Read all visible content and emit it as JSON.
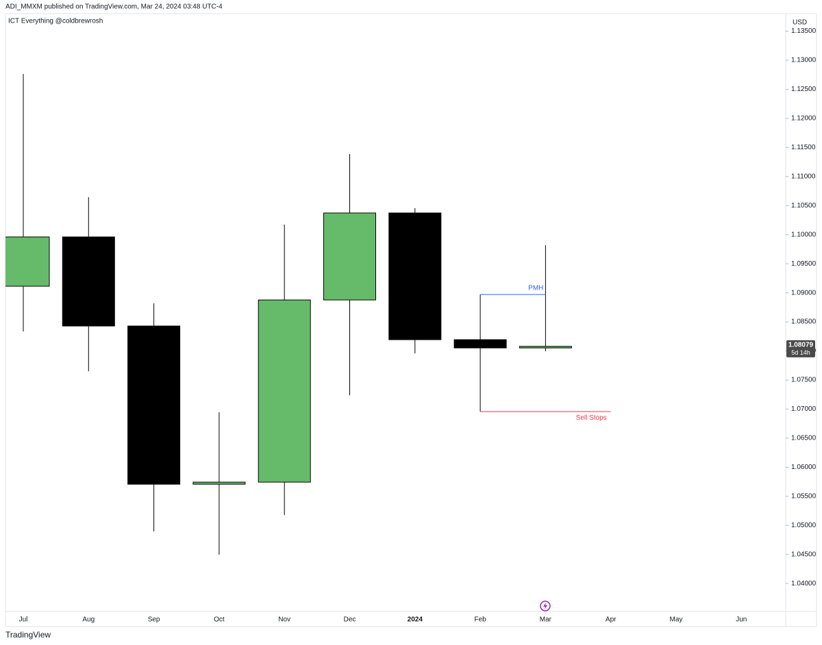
{
  "header": "ADI_MMXM published on TradingView.com, Mar 24, 2024 03:48 UTC-4",
  "footer": "TradingView",
  "chart_data": {
    "type": "candlestick",
    "title": "ICT Everything @coldbrewrosh",
    "currency": "USD",
    "categories": [
      "Jul",
      "Aug",
      "Sep",
      "Oct",
      "Nov",
      "Dec",
      "2024",
      "Feb",
      "Mar",
      "Apr",
      "May",
      "Jun"
    ],
    "open": [
      1.09113,
      1.09961,
      1.08429,
      1.05708,
      1.05744,
      1.08877,
      1.10373,
      1.08194,
      1.08052,
      null,
      null,
      null
    ],
    "high": [
      1.12764,
      1.10644,
      1.08818,
      1.06945,
      1.10173,
      1.11386,
      1.10456,
      1.08971,
      1.0982,
      null,
      null,
      null
    ],
    "low": [
      1.08335,
      1.07652,
      1.04896,
      1.04495,
      1.05178,
      1.0724,
      1.07958,
      1.06957,
      1.07993,
      null,
      null,
      null
    ],
    "close": [
      1.09961,
      1.08429,
      1.05708,
      1.05744,
      1.08877,
      1.10373,
      1.08194,
      1.08052,
      1.08079,
      null,
      null,
      null
    ],
    "up_color": "#66bb6a",
    "down_color": "#000000",
    "last_price": 1.08079,
    "countdown": "5d 14h",
    "ylim": [
      1.0352,
      1.138
    ],
    "yticks": [
      {
        "value": 1.04,
        "label": "1.04000"
      },
      {
        "value": 1.045,
        "label": "1.04500"
      },
      {
        "value": 1.05,
        "label": "1.05000"
      },
      {
        "value": 1.055,
        "label": "1.05500"
      },
      {
        "value": 1.06,
        "label": "1.06000"
      },
      {
        "value": 1.065,
        "label": "1.06500"
      },
      {
        "value": 1.07,
        "label": "1.07000"
      },
      {
        "value": 1.075,
        "label": "1.07500"
      },
      {
        "value": 1.08,
        "label": "1.08000"
      },
      {
        "value": 1.085,
        "label": "1.08500"
      },
      {
        "value": 1.09,
        "label": "1.09000"
      },
      {
        "value": 1.095,
        "label": "1.09500"
      },
      {
        "value": 1.1,
        "label": "1.10000"
      },
      {
        "value": 1.105,
        "label": "1.10500"
      },
      {
        "value": 1.11,
        "label": "1.11000"
      },
      {
        "value": 1.115,
        "label": "1.11500"
      },
      {
        "value": 1.12,
        "label": "1.12000"
      },
      {
        "value": 1.125,
        "label": "1.12500"
      },
      {
        "value": 1.13,
        "label": "1.13000"
      },
      {
        "value": 1.135,
        "label": "1.13500"
      }
    ],
    "annotations": [
      {
        "text": "PMH",
        "value": 1.08971,
        "from": "Feb",
        "to": "Mar",
        "color": "#2962ff"
      },
      {
        "text": "Sell Stops",
        "value": 1.06957,
        "from": "Feb",
        "to": "Apr",
        "color": "#f23645"
      }
    ]
  }
}
